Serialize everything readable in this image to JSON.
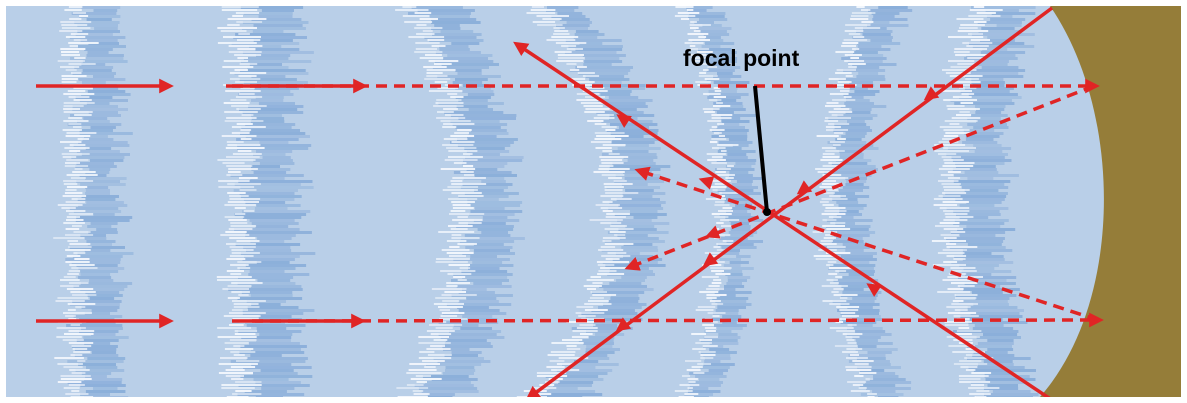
{
  "diagram": {
    "labels": {
      "focal_point": "focal point"
    },
    "colors": {
      "water": "#b9cfe8",
      "wave_dark": "#7fa6d6",
      "wave_light": "#f2f6fc",
      "reflector": "#957d39",
      "ray": "#e02525",
      "pointer": "#000000",
      "frame": "#ffffff"
    },
    "elements": {
      "incoming_solid_rays": 4,
      "incoming_dashed_rays": 2,
      "reflected_dashed_rays": 2,
      "crossing_solid_rays": 2
    }
  }
}
